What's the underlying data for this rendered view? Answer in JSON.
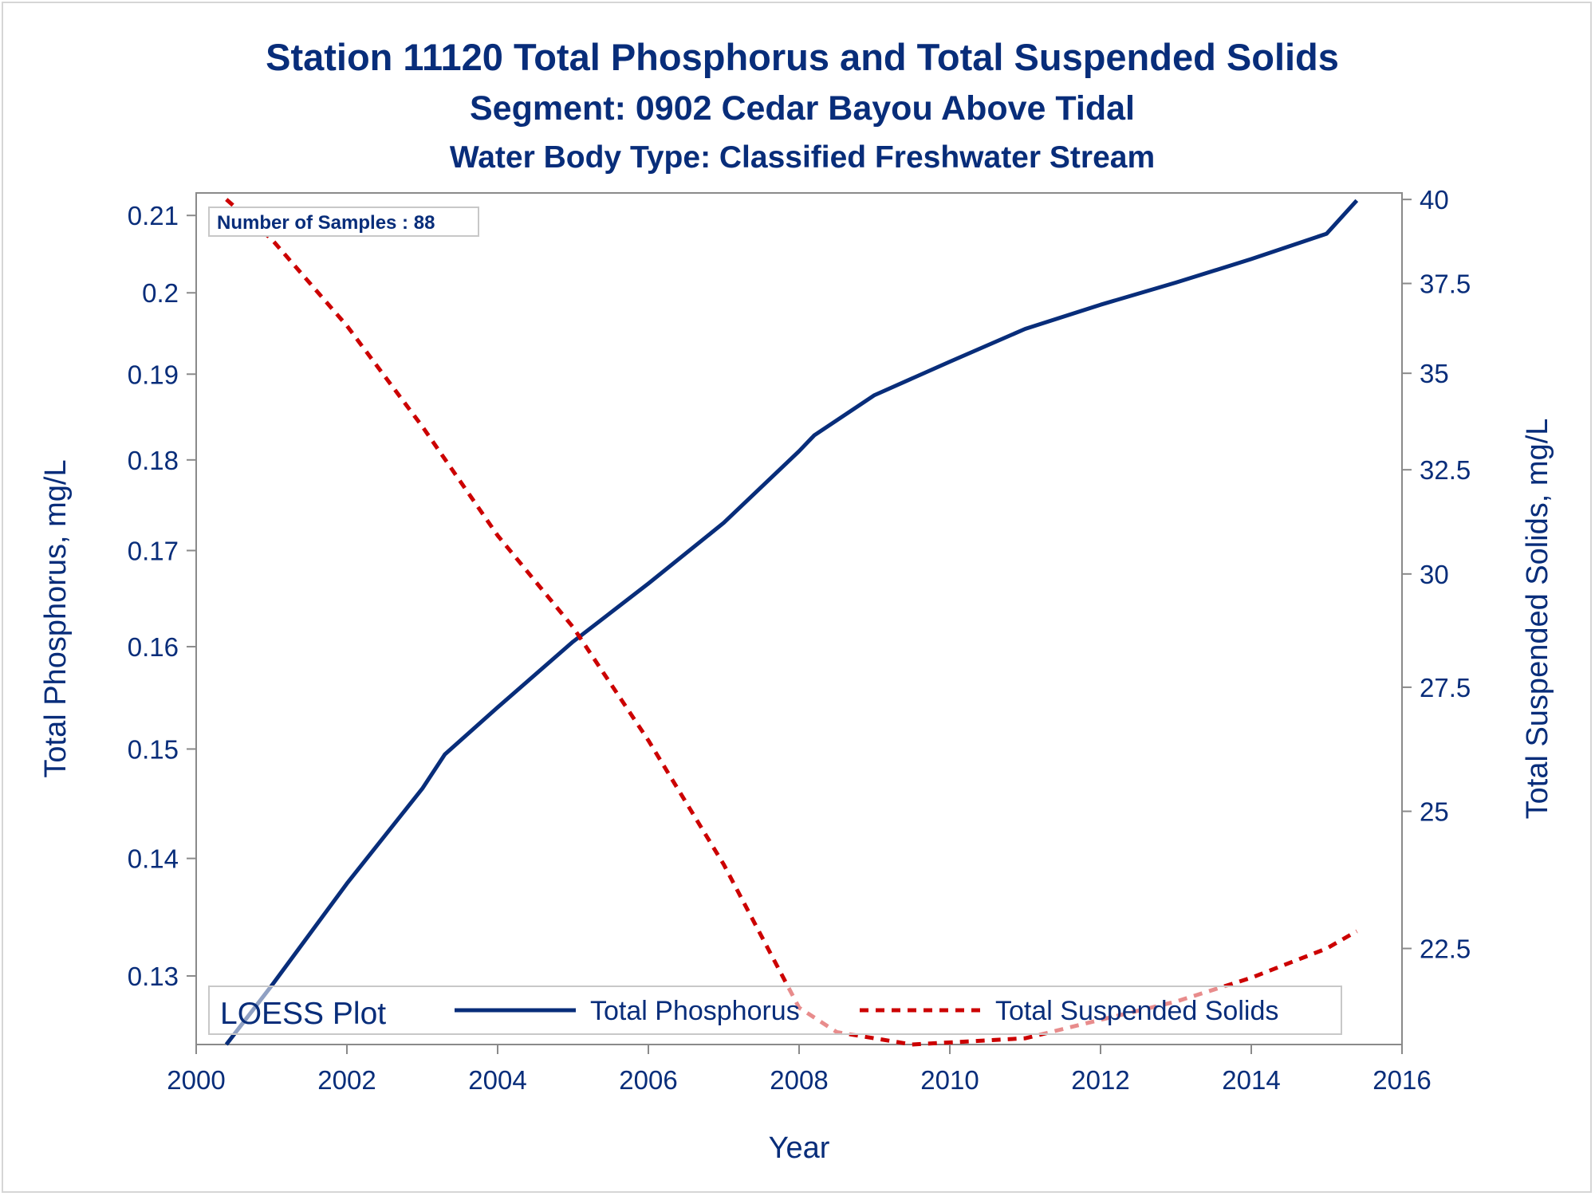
{
  "chart_data": {
    "type": "line",
    "title": "Station 11120  Total Phosphorus and Total Suspended Solids",
    "subtitle": "Segment: 0902  Cedar Bayou Above Tidal",
    "subtitle2": "Water Body Type: Classified Freshwater Stream",
    "xlabel": "Year",
    "ylabel": "Total Phosphorus, mg/L",
    "y2label": "Total Suspended Solids, mg/L",
    "xlim": [
      2000,
      2016
    ],
    "ylim": [
      0.1245,
      0.213
    ],
    "y2lim": [
      20.9,
      40.2
    ],
    "x_ticks": [
      "2000",
      "2002",
      "2004",
      "2006",
      "2008",
      "2010",
      "2012",
      "2014",
      "2016"
    ],
    "y_ticks": [
      "0.13",
      "0.14",
      "0.15",
      "0.16",
      "0.17",
      "0.18",
      "0.19",
      "0.2",
      "0.21"
    ],
    "y2_ticks": [
      "22.5",
      "25",
      "27.5",
      "30",
      "32.5",
      "35",
      "37.5",
      "40"
    ],
    "annotation": "Number of Samples : 88",
    "legend": {
      "title": "LOESS Plot",
      "placement": "bottom-inside",
      "items": [
        "Total Phosphorus",
        "Total Suspended Solids"
      ]
    },
    "series": [
      {
        "name": "Total Phosphorus",
        "axis": "left",
        "color": "#082d7a",
        "style": "solid",
        "x": [
          2000.4,
          2001,
          2002,
          2003,
          2003.3,
          2004,
          2005,
          2006,
          2007,
          2008,
          2008.2,
          2009,
          2010,
          2011,
          2012,
          2013,
          2014,
          2015,
          2015.4
        ],
        "y": [
          0.1245,
          0.1292,
          0.1378,
          0.1463,
          0.1495,
          0.154,
          0.1605,
          0.1665,
          0.173,
          0.181,
          0.1828,
          0.1875,
          0.1915,
          0.1955,
          0.1985,
          0.2013,
          0.2043,
          0.2076,
          0.212
        ]
      },
      {
        "name": "Total Suspended Solids",
        "axis": "right",
        "color": "#cc0000",
        "style": "dashed",
        "x": [
          2000.4,
          2001,
          2002,
          2003,
          2004,
          2005,
          2006,
          2007,
          2008,
          2008.5,
          2009.5,
          2011,
          2012,
          2013,
          2014,
          2015,
          2015.4
        ],
        "y": [
          40.0,
          38.8,
          36.3,
          33.6,
          30.9,
          28.8,
          26.4,
          24.0,
          21.5,
          21.1,
          20.9,
          21.0,
          21.3,
          21.6,
          22.0,
          22.5,
          22.8
        ]
      }
    ]
  }
}
